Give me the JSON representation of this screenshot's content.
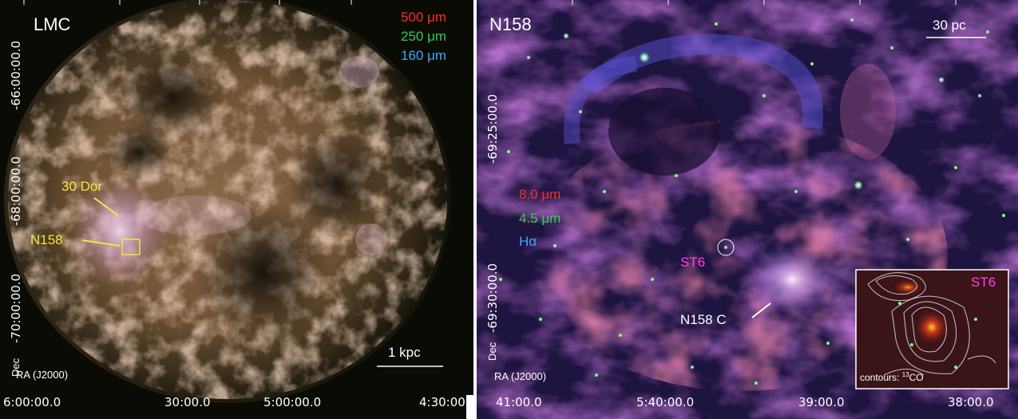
{
  "left": {
    "title": "LMC",
    "bands": [
      {
        "label": "500 μm",
        "color": "#ff2a2a"
      },
      {
        "label": "250 μm",
        "color": "#34c85a"
      },
      {
        "label": "160 μm",
        "color": "#3fa6ff"
      }
    ],
    "annotations": {
      "dor": "30 Dor",
      "n158": "N158"
    },
    "scalebar": "1 kpc",
    "axis_dec_label": "Dec",
    "axis_ra_label": "RA (J2000)",
    "dec_ticks": [
      "-66:00:00.0",
      "-68:00:00.0",
      "-70:00:00.0"
    ],
    "ra_ticks": [
      "6:00:00.0",
      "30:00.0",
      "5:00:00.0",
      "4:30:00"
    ]
  },
  "right": {
    "title": "N158",
    "scalebar": "30 pc",
    "bands": [
      {
        "label": "8.0 μm",
        "color": "#ff2a2a"
      },
      {
        "label": "4.5 μm",
        "color": "#3dcc4a"
      },
      {
        "label": "Hα",
        "color": "#3fa6ff"
      }
    ],
    "st6": "ST6",
    "n158c": "N158 C",
    "axis_dec_label": "Dec",
    "axis_ra_label": "RA (J2000)",
    "dec_ticks": [
      "-69:25:00.0",
      "-69:30:00.0"
    ],
    "ra_ticks": [
      "41:00.0",
      "5:40:00.0",
      "39:00.0",
      "38:00.0"
    ],
    "inset": {
      "title": "ST6",
      "caption_prefix": "contours: ",
      "caption_sup": "13",
      "caption_suffix": "CO"
    }
  }
}
